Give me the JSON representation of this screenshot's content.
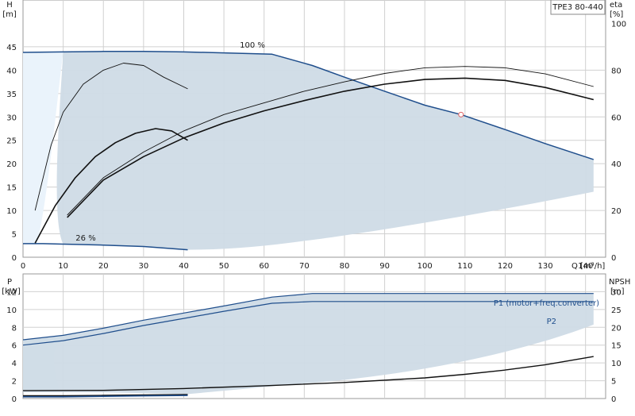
{
  "chart_data": [
    {
      "type": "line",
      "name": "head-chart",
      "model_label": "TPE3 80-440",
      "ylabel_left": "H",
      "yunit_left": "[m]",
      "ylabel_right": "eta",
      "yunit_right": "[%]",
      "xlabel": "Q [m³/h]",
      "xlim": [
        0,
        145
      ],
      "ylim_left": [
        0,
        55
      ],
      "ylim_right": [
        0,
        110
      ],
      "xticks": [
        0,
        10,
        20,
        30,
        40,
        50,
        60,
        70,
        80,
        90,
        100,
        110,
        120,
        130,
        140
      ],
      "yticks_left": [
        0,
        5,
        10,
        15,
        20,
        25,
        30,
        35,
        40,
        45
      ],
      "yticks_right": [
        0,
        20,
        40,
        60,
        80,
        100
      ],
      "grid": true,
      "labels": {
        "curve_max": "100 %",
        "curve_min": "26 %"
      },
      "duty_point": {
        "x": 109,
        "y": 30.5
      },
      "series": [
        {
          "role": "head-100",
          "x": [
            0,
            10,
            20,
            30,
            40,
            50,
            62,
            72,
            80,
            90,
            100,
            109,
            120,
            130,
            142
          ],
          "y": [
            43.8,
            43.9,
            44.0,
            44.0,
            43.9,
            43.7,
            43.4,
            41.0,
            38.5,
            35.5,
            32.5,
            30.5,
            27.3,
            24.3,
            20.9
          ]
        },
        {
          "role": "head-26",
          "x": [
            0,
            5,
            10,
            20,
            30,
            41
          ],
          "y": [
            2.9,
            2.9,
            2.8,
            2.6,
            2.3,
            1.6
          ]
        },
        {
          "role": "eta-min-thin",
          "x": [
            3,
            7,
            10,
            15,
            20,
            25,
            30,
            35,
            41
          ],
          "y": [
            10,
            24,
            31,
            37,
            40,
            41.5,
            41,
            38.5,
            36
          ]
        },
        {
          "role": "eta-min-thick",
          "x": [
            3,
            8,
            13,
            18,
            23,
            28,
            33,
            37,
            41
          ],
          "y": [
            3,
            11,
            17,
            21.5,
            24.5,
            26.5,
            27.5,
            27,
            25
          ]
        },
        {
          "role": "eta-max-thin",
          "x": [
            11,
            20,
            30,
            40,
            50,
            60,
            70,
            80,
            90,
            100,
            110,
            120,
            130,
            142
          ],
          "y": [
            9,
            17,
            22.5,
            27,
            30.5,
            33,
            35.5,
            37.5,
            39.3,
            40.5,
            40.8,
            40.5,
            39.2,
            36.5
          ]
        },
        {
          "role": "eta-max-thick",
          "x": [
            11,
            20,
            30,
            40,
            50,
            60,
            70,
            80,
            90,
            100,
            110,
            120,
            130,
            142
          ],
          "y": [
            8.5,
            16.5,
            21.5,
            25.5,
            28.7,
            31.3,
            33.5,
            35.5,
            37,
            38,
            38.3,
            37.8,
            36.3,
            33.7
          ]
        }
      ]
    },
    {
      "type": "line",
      "name": "power-npsh-chart",
      "ylabel_left": "P",
      "yunit_left": "[kW]",
      "ylabel_right": "NPSH",
      "yunit_right": "[m]",
      "xlim": [
        0,
        145
      ],
      "ylim_left": [
        0,
        14
      ],
      "ylim_right": [
        0,
        35
      ],
      "yticks_left": [
        0,
        2,
        4,
        6,
        8,
        10,
        12
      ],
      "yticks_right": [
        0,
        5,
        10,
        15,
        20,
        25,
        30
      ],
      "grid": true,
      "labels": {
        "p1": "P1 (motor+freq.converter)",
        "p2": "P2"
      },
      "series": [
        {
          "role": "P1",
          "x": [
            0,
            10,
            20,
            30,
            40,
            50,
            62,
            72,
            80,
            90,
            100,
            110,
            120,
            130,
            142
          ],
          "y": [
            6.6,
            7.1,
            7.9,
            8.8,
            9.6,
            10.4,
            11.4,
            11.8,
            11.8,
            11.8,
            11.8,
            11.8,
            11.8,
            11.8,
            11.8
          ]
        },
        {
          "role": "P2",
          "x": [
            0,
            10,
            20,
            30,
            40,
            50,
            62,
            72,
            80,
            90,
            100,
            110,
            120,
            130,
            142
          ],
          "y": [
            6.0,
            6.5,
            7.3,
            8.2,
            9.0,
            9.8,
            10.7,
            10.9,
            10.9,
            10.9,
            10.9,
            10.9,
            10.9,
            10.9,
            10.9
          ]
        },
        {
          "role": "NPSH",
          "x": [
            0,
            20,
            40,
            60,
            80,
            100,
            110,
            120,
            130,
            142
          ],
          "y_right": [
            2.2,
            2.3,
            2.8,
            3.6,
            4.5,
            5.8,
            6.8,
            8.0,
            9.5,
            11.8
          ]
        },
        {
          "role": "P1-min",
          "x": [
            0,
            10,
            20,
            30,
            41
          ],
          "y": [
            0.3,
            0.3,
            0.35,
            0.4,
            0.45
          ]
        },
        {
          "role": "P2-min",
          "x": [
            0,
            10,
            20,
            30,
            41
          ],
          "y": [
            0.2,
            0.2,
            0.25,
            0.3,
            0.35
          ]
        }
      ]
    }
  ],
  "colors": {
    "curve": "#1f4e8c",
    "area": "#cfdbe6",
    "area_light": "#eaf3fb",
    "grid": "#d0d0d0",
    "black": "#111111",
    "duty": "#e06060"
  }
}
